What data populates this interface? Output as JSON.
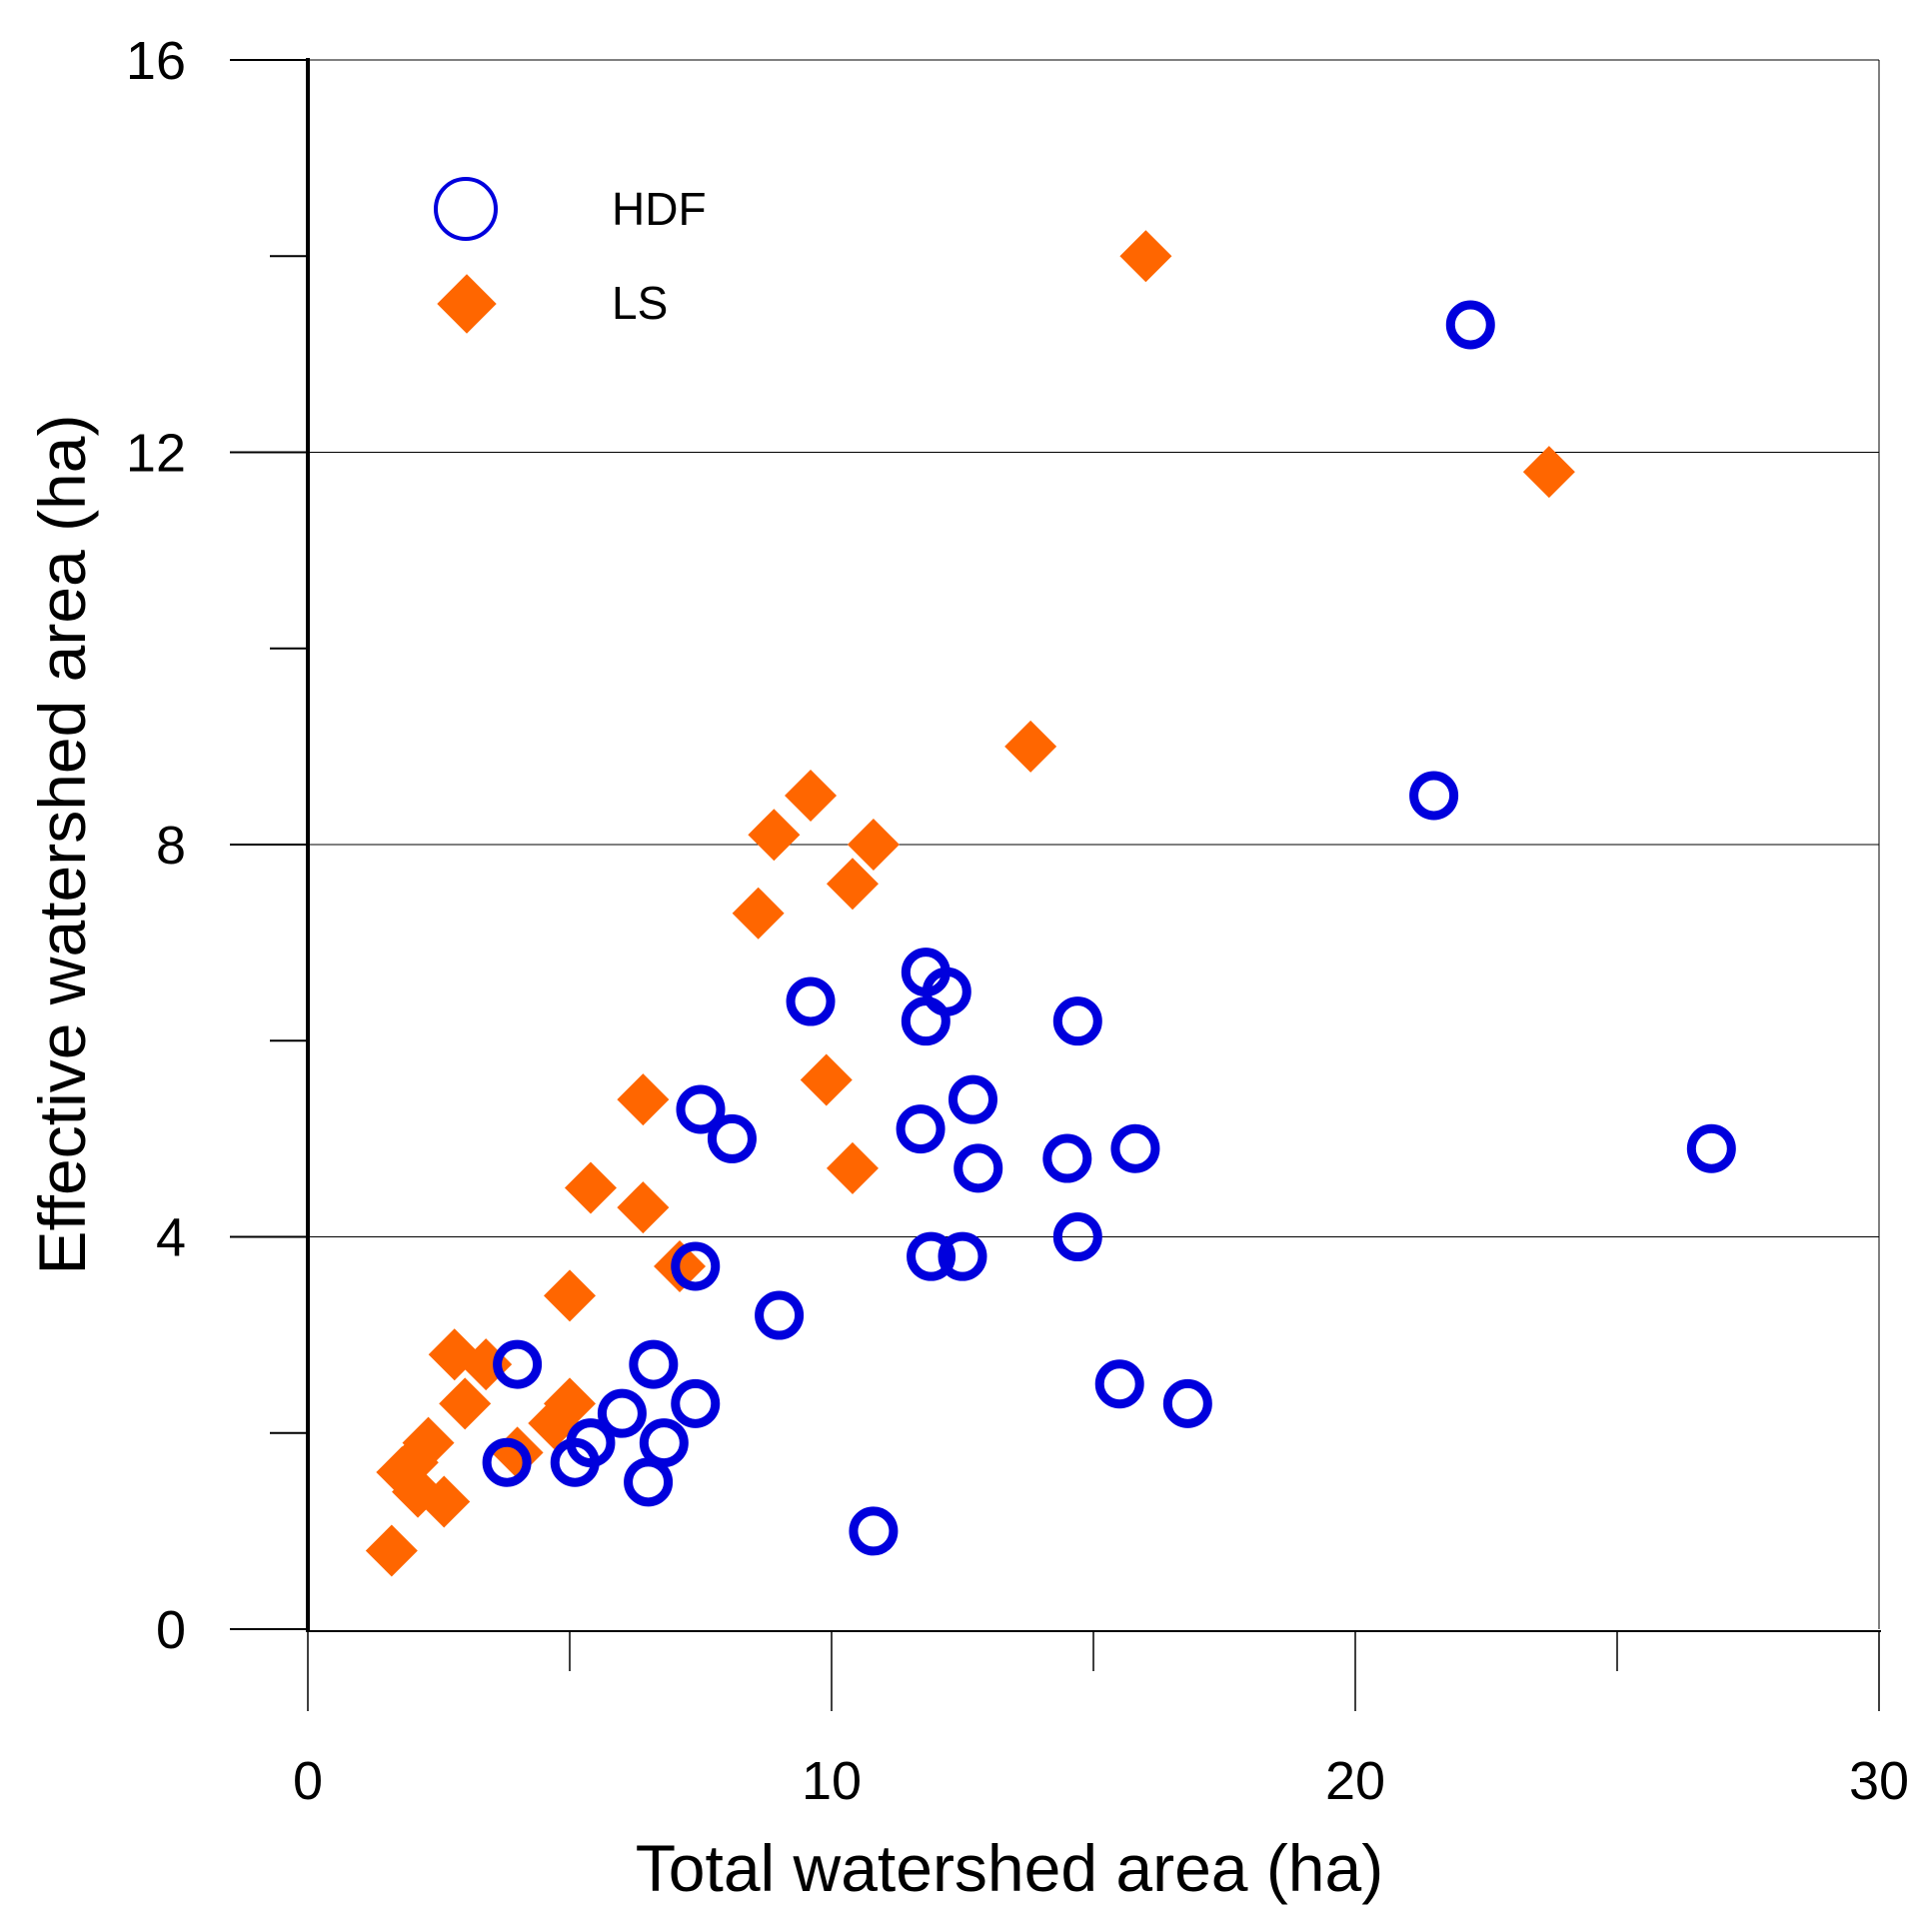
{
  "chart_data": {
    "type": "scatter",
    "title": "",
    "xlabel": "Total watershed area (ha)",
    "ylabel": "Effective watershed area (ha)",
    "xlim": [
      0,
      30
    ],
    "ylim": [
      0,
      16
    ],
    "x_ticks": [
      0,
      10,
      20,
      30
    ],
    "y_ticks": [
      0,
      4,
      8,
      12,
      16
    ],
    "x_minor_ticks": [
      5,
      15,
      25
    ],
    "y_minor_ticks": [
      2,
      6,
      10,
      14
    ],
    "grid": "horizontal",
    "legend_position": "top-left",
    "series": [
      {
        "name": "HDF",
        "marker": "open-circle",
        "color": "#0000dd",
        "points": [
          [
            3.8,
            1.7
          ],
          [
            4.0,
            2.7
          ],
          [
            5.1,
            1.7
          ],
          [
            5.4,
            1.9
          ],
          [
            6.0,
            2.2
          ],
          [
            6.5,
            1.5
          ],
          [
            6.6,
            2.7
          ],
          [
            6.8,
            1.9
          ],
          [
            7.4,
            3.7
          ],
          [
            7.4,
            2.3
          ],
          [
            7.5,
            5.3
          ],
          [
            8.1,
            5.0
          ],
          [
            9.0,
            3.2
          ],
          [
            9.6,
            6.4
          ],
          [
            10.8,
            1.0
          ],
          [
            11.7,
            5.1
          ],
          [
            11.8,
            6.7
          ],
          [
            11.8,
            6.2
          ],
          [
            11.9,
            3.8
          ],
          [
            12.2,
            6.5
          ],
          [
            12.5,
            3.8
          ],
          [
            12.7,
            5.4
          ],
          [
            12.8,
            4.7
          ],
          [
            14.5,
            4.8
          ],
          [
            14.7,
            6.2
          ],
          [
            14.7,
            4.0
          ],
          [
            15.5,
            2.5
          ],
          [
            15.8,
            4.9
          ],
          [
            16.8,
            2.3
          ],
          [
            21.5,
            8.5
          ],
          [
            22.2,
            13.3
          ],
          [
            26.8,
            4.9
          ]
        ]
      },
      {
        "name": "LS",
        "marker": "filled-diamond",
        "color": "#ff6600",
        "points": [
          [
            1.6,
            0.8
          ],
          [
            1.8,
            1.6
          ],
          [
            2.0,
            1.7
          ],
          [
            2.1,
            1.4
          ],
          [
            2.3,
            1.9
          ],
          [
            2.6,
            1.3
          ],
          [
            2.8,
            2.8
          ],
          [
            3.0,
            2.3
          ],
          [
            3.4,
            2.7
          ],
          [
            4.0,
            1.8
          ],
          [
            4.7,
            2.1
          ],
          [
            5.0,
            2.3
          ],
          [
            5.0,
            3.4
          ],
          [
            5.4,
            4.5
          ],
          [
            6.4,
            5.4
          ],
          [
            6.4,
            4.3
          ],
          [
            7.1,
            3.7
          ],
          [
            8.6,
            7.3
          ],
          [
            8.9,
            8.1
          ],
          [
            9.6,
            8.5
          ],
          [
            9.9,
            5.6
          ],
          [
            10.4,
            7.6
          ],
          [
            10.4,
            4.7
          ],
          [
            10.8,
            8.0
          ],
          [
            13.8,
            9.0
          ],
          [
            16.0,
            14.0
          ],
          [
            23.7,
            11.8
          ]
        ]
      }
    ]
  }
}
